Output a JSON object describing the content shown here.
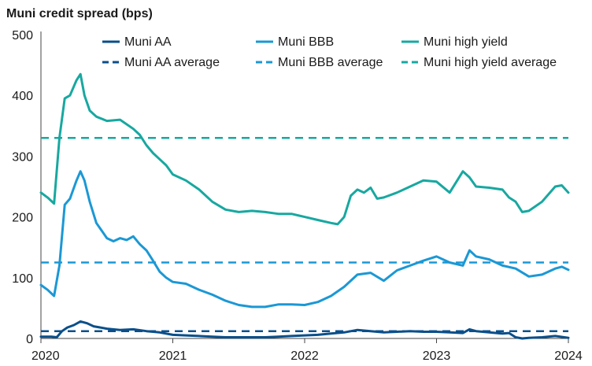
{
  "chart_data": {
    "type": "line",
    "title": "Muni credit spread (bps)",
    "xlabel": "",
    "ylabel": "",
    "xlim": [
      2020.0,
      2024.0
    ],
    "ylim": [
      0,
      500
    ],
    "yticks": [
      0,
      100,
      200,
      300,
      400,
      500
    ],
    "xticks": [
      {
        "value": 2020,
        "label": "2020"
      },
      {
        "value": 2021,
        "label": "2021"
      },
      {
        "value": 2022,
        "label": "2022"
      },
      {
        "value": 2023,
        "label": "2023"
      },
      {
        "value": 2024,
        "label": "2024"
      }
    ],
    "grid": false,
    "legend_position": "top",
    "series": [
      {
        "name": "Muni AA",
        "color": "#0a4f8a",
        "style": "solid",
        "x": [
          2020.0,
          2020.08,
          2020.12,
          2020.16,
          2020.2,
          2020.25,
          2020.3,
          2020.35,
          2020.4,
          2020.5,
          2020.6,
          2020.7,
          2020.8,
          2020.9,
          2021.0,
          2021.1,
          2021.2,
          2021.3,
          2021.4,
          2021.5,
          2021.6,
          2021.7,
          2021.8,
          2021.9,
          2022.0,
          2022.1,
          2022.2,
          2022.3,
          2022.4,
          2022.5,
          2022.6,
          2022.7,
          2022.8,
          2022.9,
          2023.0,
          2023.1,
          2023.2,
          2023.25,
          2023.3,
          2023.4,
          2023.5,
          2023.55,
          2023.6,
          2023.65,
          2023.7,
          2023.8,
          2023.9,
          2024.0
        ],
        "y": [
          3,
          3,
          2,
          12,
          18,
          22,
          28,
          25,
          20,
          16,
          14,
          15,
          12,
          10,
          6,
          5,
          4,
          3,
          2,
          2,
          2,
          2,
          3,
          4,
          5,
          6,
          8,
          10,
          14,
          12,
          10,
          11,
          12,
          11,
          11,
          10,
          9,
          15,
          12,
          10,
          8,
          9,
          2,
          0,
          1,
          2,
          4,
          1
        ]
      },
      {
        "name": "Muni BBB",
        "color": "#1b98d5",
        "style": "solid",
        "x": [
          2020.0,
          2020.05,
          2020.1,
          2020.14,
          2020.18,
          2020.22,
          2020.27,
          2020.3,
          2020.33,
          2020.37,
          2020.42,
          2020.5,
          2020.55,
          2020.6,
          2020.65,
          2020.7,
          2020.75,
          2020.8,
          2020.85,
          2020.9,
          2020.95,
          2021.0,
          2021.1,
          2021.2,
          2021.3,
          2021.4,
          2021.5,
          2021.6,
          2021.7,
          2021.8,
          2021.9,
          2022.0,
          2022.1,
          2022.2,
          2022.3,
          2022.4,
          2022.5,
          2022.6,
          2022.7,
          2022.8,
          2022.9,
          2023.0,
          2023.1,
          2023.2,
          2023.25,
          2023.3,
          2023.4,
          2023.5,
          2023.6,
          2023.7,
          2023.8,
          2023.9,
          2023.95,
          2024.0
        ],
        "y": [
          88,
          80,
          70,
          120,
          220,
          230,
          260,
          275,
          260,
          225,
          190,
          165,
          160,
          165,
          162,
          168,
          155,
          145,
          128,
          110,
          100,
          93,
          90,
          80,
          72,
          62,
          55,
          52,
          52,
          56,
          56,
          55,
          60,
          70,
          85,
          105,
          108,
          95,
          112,
          120,
          128,
          135,
          125,
          120,
          145,
          135,
          130,
          120,
          115,
          102,
          105,
          115,
          118,
          113
        ]
      },
      {
        "name": "Muni high yield",
        "color": "#17a8a0",
        "style": "solid",
        "x": [
          2020.0,
          2020.05,
          2020.1,
          2020.14,
          2020.18,
          2020.22,
          2020.27,
          2020.3,
          2020.33,
          2020.37,
          2020.42,
          2020.5,
          2020.6,
          2020.7,
          2020.75,
          2020.8,
          2020.85,
          2020.9,
          2020.95,
          2021.0,
          2021.1,
          2021.2,
          2021.3,
          2021.4,
          2021.5,
          2021.6,
          2021.7,
          2021.8,
          2021.9,
          2022.0,
          2022.1,
          2022.2,
          2022.25,
          2022.3,
          2022.35,
          2022.4,
          2022.45,
          2022.5,
          2022.55,
          2022.6,
          2022.7,
          2022.8,
          2022.9,
          2023.0,
          2023.1,
          2023.2,
          2023.25,
          2023.3,
          2023.4,
          2023.5,
          2023.55,
          2023.6,
          2023.65,
          2023.7,
          2023.8,
          2023.9,
          2023.95,
          2024.0
        ],
        "y": [
          240,
          232,
          222,
          330,
          395,
          400,
          425,
          435,
          400,
          375,
          365,
          358,
          360,
          345,
          335,
          318,
          305,
          295,
          285,
          270,
          260,
          245,
          225,
          212,
          208,
          210,
          208,
          205,
          205,
          200,
          195,
          190,
          188,
          200,
          235,
          245,
          240,
          248,
          230,
          232,
          240,
          250,
          260,
          258,
          240,
          275,
          265,
          250,
          248,
          245,
          232,
          225,
          208,
          210,
          225,
          250,
          252,
          240
        ]
      },
      {
        "name": "Muni AA average",
        "color": "#0a4f8a",
        "style": "dashed",
        "x": [
          2020.0,
          2024.0
        ],
        "y": [
          12,
          12
        ]
      },
      {
        "name": "Muni BBB average",
        "color": "#1b98d5",
        "style": "dashed",
        "x": [
          2020.0,
          2024.0
        ],
        "y": [
          125,
          125
        ]
      },
      {
        "name": "Muni high yield average",
        "color": "#17a8a0",
        "style": "dashed",
        "x": [
          2020.0,
          2024.0
        ],
        "y": [
          330,
          330
        ]
      }
    ]
  }
}
